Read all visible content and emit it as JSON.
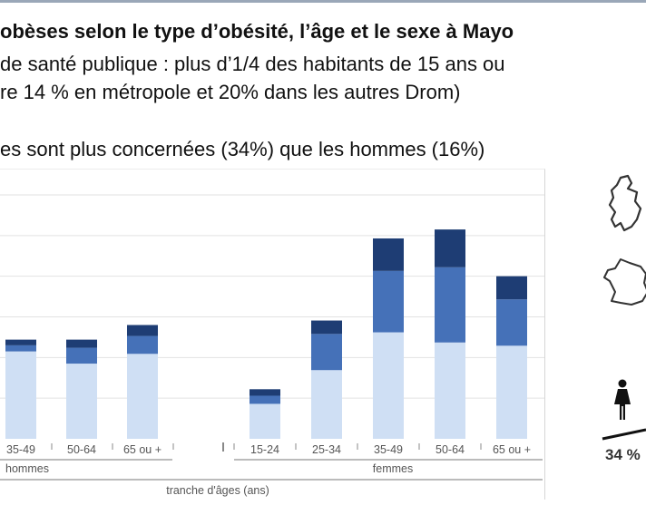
{
  "header": {
    "title": "obèses selon le type d’obésité, l’âge et le sexe à Mayo",
    "line1": "de santé publique : plus d’1/4 des habitants de 15 ans ou",
    "line2": "re 14 % en métropole et 20% dans les autres Drom)",
    "line3": "es sont plus concernées (34%) que les hommes (16%)"
  },
  "chart_data": {
    "type": "bar",
    "stacked": true,
    "xlabel": "tranche d'âges (ans)",
    "ylabel": "",
    "ylim": [
      0,
      60
    ],
    "grid": true,
    "groups": [
      {
        "name": "hommes",
        "categories": [
          "35-49",
          "50-64",
          "65 ou +"
        ]
      },
      {
        "name": "femmes",
        "categories": [
          "15-24",
          "25-34",
          "35-49",
          "50-64",
          "65 ou +"
        ]
      }
    ],
    "categories": [
      "35-49",
      "50-64",
      "65 ou +",
      "15-24",
      "25-34",
      "35-49",
      "50-64",
      "65 ou +"
    ],
    "series": [
      {
        "color": "#cfdff4",
        "values": [
          21.5,
          18.5,
          20.9,
          8.6,
          16.9,
          26.2,
          23.7,
          22.9
        ]
      },
      {
        "color": "#4571b8",
        "values": [
          1.5,
          3.9,
          4.4,
          2.0,
          8.9,
          15.1,
          18.5,
          11.4
        ]
      },
      {
        "color": "#1e3d74",
        "values": [
          1.4,
          2.0,
          2.7,
          1.6,
          3.3,
          8.0,
          9.3,
          5.7
        ]
      }
    ]
  },
  "infographic": {
    "women_pct": "34 %",
    "map_icon": "mayotte-map-icon",
    "france_icon": "france-map-icon",
    "person_icon": "woman-icon"
  }
}
